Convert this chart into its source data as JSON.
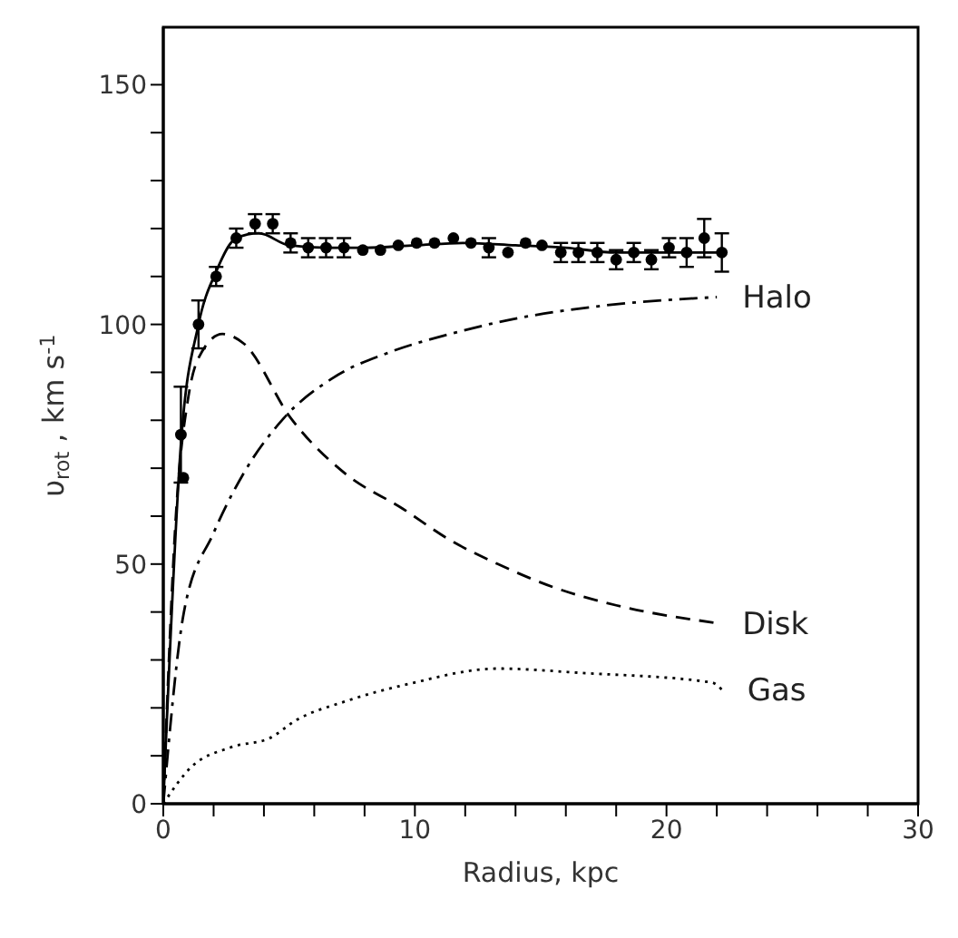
{
  "chart_data": {
    "type": "line",
    "xlabel": "Radius, kpc",
    "ylabel": "υ$_{rot}$ , km s$^{-1}$",
    "xlim": [
      0,
      30
    ],
    "ylim": [
      0,
      162
    ],
    "xticks": [
      0,
      {
        "value": 2,
        "label": null
      },
      {
        "value": 4,
        "label": null
      },
      {
        "value": 6,
        "label": null
      },
      {
        "value": 8,
        "label": null
      },
      10,
      {
        "value": 12,
        "label": null
      },
      {
        "value": 14,
        "label": null
      },
      {
        "value": 16,
        "label": null
      },
      {
        "value": 18,
        "label": null
      },
      20,
      {
        "value": 22,
        "label": null
      },
      {
        "value": 24,
        "label": null
      },
      {
        "value": 26,
        "label": null
      },
      {
        "value": 28,
        "label": null
      },
      30
    ],
    "yticks": [
      0,
      {
        "value": 10,
        "label": null
      },
      {
        "value": 20,
        "label": null
      },
      {
        "value": 30,
        "label": null
      },
      {
        "value": 40,
        "label": null
      },
      50,
      {
        "value": 60,
        "label": null
      },
      {
        "value": 70,
        "label": null
      },
      {
        "value": 80,
        "label": null
      },
      {
        "value": 90,
        "label": null
      },
      100,
      {
        "value": 110,
        "label": null
      },
      {
        "value": 120,
        "label": null
      },
      {
        "value": 130,
        "label": null
      },
      {
        "value": 140,
        "label": null
      },
      150
    ],
    "grid": false,
    "legend": false,
    "series": [
      {
        "type": "scatter",
        "marker": "circle",
        "color": "#000000",
        "x": [
          0.7,
          0.8,
          1.4,
          2.1,
          2.9,
          3.65,
          4.35,
          5.06,
          5.76,
          6.47,
          7.18,
          7.93,
          8.63,
          9.34,
          10.07,
          10.78,
          11.53,
          12.23,
          12.94,
          13.7,
          14.4,
          15.05,
          15.8,
          16.5,
          17.25,
          18.0,
          18.7,
          19.4,
          20.1,
          20.8,
          21.5,
          22.2
        ],
        "values": [
          77,
          68,
          100,
          110,
          118,
          121,
          121,
          117,
          116,
          116,
          116,
          115.5,
          115.5,
          116.5,
          117,
          117,
          118,
          117,
          116,
          115,
          117,
          116.5,
          115,
          115,
          115,
          113.5,
          115,
          113.5,
          116,
          115,
          118,
          115
        ],
        "errors": [
          10,
          null,
          5,
          2,
          2,
          2,
          2,
          2,
          2,
          2,
          2,
          null,
          null,
          null,
          null,
          null,
          null,
          null,
          2,
          null,
          null,
          null,
          2,
          2,
          2,
          2,
          2,
          2,
          2,
          3,
          4,
          4
        ]
      },
      {
        "line_style": "solid",
        "color": "#000000",
        "x": [
          0,
          0.7,
          1.4,
          2.1,
          2.9,
          3.8,
          5.0,
          6.5,
          8,
          10,
          12,
          14,
          16,
          18,
          20,
          22.2
        ],
        "values": [
          0,
          75,
          100,
          111,
          118,
          119,
          116.5,
          116,
          116,
          116.5,
          117,
          116.5,
          116,
          115,
          115,
          115
        ]
      },
      {
        "name": "Halo",
        "line_style": "dashdot",
        "color": "#000000",
        "x": [
          0,
          0.82,
          2,
          3.2,
          4.8,
          6.7,
          9.05,
          11.4,
          13.8,
          17.3,
          22
        ],
        "values": [
          0,
          40,
          56.5,
          69,
          80.5,
          88.7,
          94.3,
          98,
          101,
          103.8,
          105.7
        ]
      },
      {
        "name": "Disk",
        "line_style": "dashed",
        "color": "#000000",
        "x": [
          0,
          0.5,
          1,
          1.4,
          2.35,
          3.2,
          5.06,
          7.2,
          9.5,
          11.4,
          13.3,
          15.6,
          18,
          22
        ],
        "values": [
          0,
          60,
          85,
          93,
          98,
          96,
          80.5,
          69,
          61.6,
          55,
          50,
          45,
          41.4,
          37.7
        ]
      },
      {
        "name": "Gas",
        "line_style": "dotted",
        "color": "#000000",
        "x": [
          0,
          1.06,
          2.7,
          4.23,
          5.3,
          7.2,
          9.76,
          13.3,
          16.6,
          21.8,
          22.2
        ],
        "values": [
          0,
          7.4,
          11.8,
          13.7,
          17.5,
          21.3,
          25,
          28.2,
          27.3,
          25.3,
          23.8
        ]
      }
    ]
  }
}
